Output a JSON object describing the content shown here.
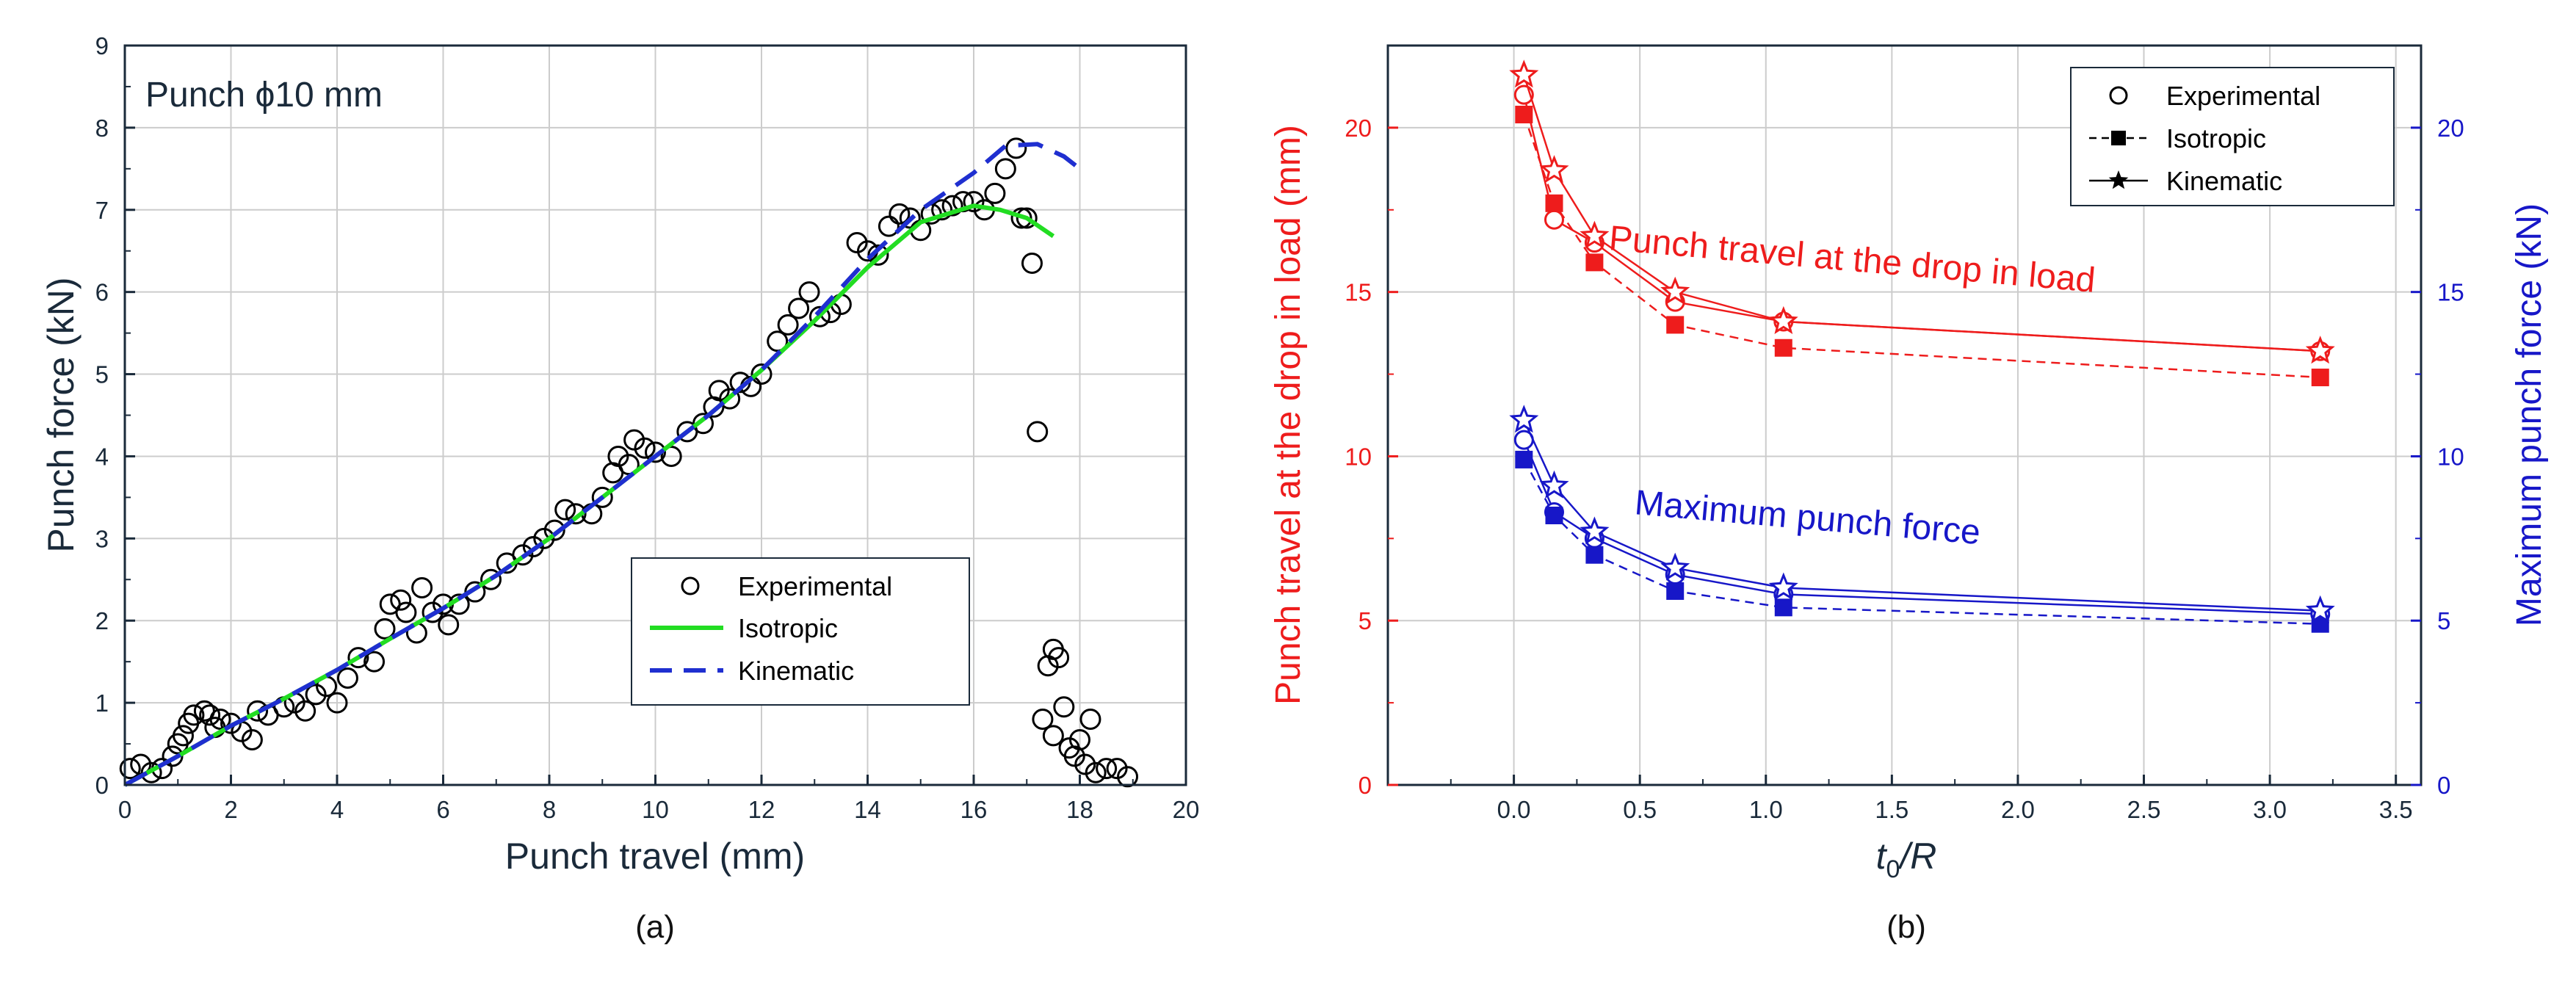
{
  "chart_data": [
    {
      "type": "scatter",
      "caption": "(a)",
      "annotation": "Punch ϕ10 mm",
      "xlabel": "Punch travel (mm)",
      "ylabel": "Punch force (kN)",
      "xlim": [
        0,
        20
      ],
      "ylim": [
        0,
        9
      ],
      "xticks": [
        "0",
        "2",
        "4",
        "6",
        "8",
        "10",
        "12",
        "14",
        "16",
        "18",
        "20"
      ],
      "yticks": [
        "0",
        "1",
        "2",
        "3",
        "4",
        "5",
        "6",
        "7",
        "8",
        "9"
      ],
      "grid": true,
      "legend_position": "bottom-right",
      "legend": [
        "Experimental",
        "Isotropic",
        "Kinematic"
      ],
      "colors": {
        "experimental": "#000000",
        "isotropic": "#22dd22",
        "kinematic": "#1f2fd0",
        "axes": "#1a2a3a"
      },
      "series": [
        {
          "name": "Experimental",
          "marker": "open-circle",
          "points": [
            [
              0.1,
              0.2
            ],
            [
              0.3,
              0.25
            ],
            [
              0.5,
              0.15
            ],
            [
              0.7,
              0.2
            ],
            [
              0.9,
              0.35
            ],
            [
              1.0,
              0.5
            ],
            [
              1.1,
              0.6
            ],
            [
              1.2,
              0.75
            ],
            [
              1.3,
              0.85
            ],
            [
              1.5,
              0.9
            ],
            [
              1.6,
              0.85
            ],
            [
              1.7,
              0.7
            ],
            [
              1.8,
              0.8
            ],
            [
              2.0,
              0.75
            ],
            [
              2.2,
              0.65
            ],
            [
              2.4,
              0.55
            ],
            [
              2.5,
              0.9
            ],
            [
              2.7,
              0.85
            ],
            [
              3.0,
              0.95
            ],
            [
              3.2,
              1.0
            ],
            [
              3.4,
              0.9
            ],
            [
              3.6,
              1.1
            ],
            [
              3.8,
              1.2
            ],
            [
              4.0,
              1.0
            ],
            [
              4.2,
              1.3
            ],
            [
              4.4,
              1.55
            ],
            [
              4.7,
              1.5
            ],
            [
              4.9,
              1.9
            ],
            [
              5.0,
              2.2
            ],
            [
              5.2,
              2.25
            ],
            [
              5.3,
              2.1
            ],
            [
              5.5,
              1.85
            ],
            [
              5.6,
              2.4
            ],
            [
              5.8,
              2.1
            ],
            [
              6.0,
              2.2
            ],
            [
              6.1,
              1.95
            ],
            [
              6.3,
              2.2
            ],
            [
              6.6,
              2.35
            ],
            [
              6.9,
              2.5
            ],
            [
              7.2,
              2.7
            ],
            [
              7.5,
              2.8
            ],
            [
              7.7,
              2.9
            ],
            [
              7.9,
              3.0
            ],
            [
              8.1,
              3.1
            ],
            [
              8.3,
              3.35
            ],
            [
              8.5,
              3.3
            ],
            [
              8.8,
              3.3
            ],
            [
              9.0,
              3.5
            ],
            [
              9.2,
              3.8
            ],
            [
              9.3,
              4.0
            ],
            [
              9.5,
              3.9
            ],
            [
              9.6,
              4.2
            ],
            [
              9.8,
              4.1
            ],
            [
              10.0,
              4.05
            ],
            [
              10.3,
              4.0
            ],
            [
              10.6,
              4.3
            ],
            [
              10.9,
              4.4
            ],
            [
              11.1,
              4.6
            ],
            [
              11.2,
              4.8
            ],
            [
              11.4,
              4.7
            ],
            [
              11.6,
              4.9
            ],
            [
              11.8,
              4.85
            ],
            [
              12.0,
              5.0
            ],
            [
              12.3,
              5.4
            ],
            [
              12.5,
              5.6
            ],
            [
              12.7,
              5.8
            ],
            [
              12.9,
              6.0
            ],
            [
              13.1,
              5.7
            ],
            [
              13.3,
              5.75
            ],
            [
              13.5,
              5.85
            ],
            [
              13.8,
              6.6
            ],
            [
              14.0,
              6.5
            ],
            [
              14.2,
              6.45
            ],
            [
              14.4,
              6.8
            ],
            [
              14.6,
              6.95
            ],
            [
              14.8,
              6.9
            ],
            [
              15.0,
              6.75
            ],
            [
              15.2,
              6.95
            ],
            [
              15.4,
              7.0
            ],
            [
              15.6,
              7.05
            ],
            [
              15.8,
              7.1
            ],
            [
              16.0,
              7.1
            ],
            [
              16.2,
              7.0
            ],
            [
              16.4,
              7.2
            ],
            [
              16.6,
              7.5
            ],
            [
              16.8,
              7.75
            ],
            [
              16.9,
              6.9
            ],
            [
              17.0,
              6.9
            ],
            [
              17.1,
              6.35
            ],
            [
              17.2,
              4.3
            ],
            [
              17.3,
              0.8
            ],
            [
              17.4,
              1.45
            ],
            [
              17.5,
              1.65
            ],
            [
              17.6,
              1.55
            ],
            [
              17.5,
              0.6
            ],
            [
              17.7,
              0.95
            ],
            [
              17.8,
              0.45
            ],
            [
              17.9,
              0.35
            ],
            [
              18.0,
              0.55
            ],
            [
              18.1,
              0.25
            ],
            [
              18.2,
              0.8
            ],
            [
              18.3,
              0.15
            ],
            [
              18.5,
              0.2
            ],
            [
              18.7,
              0.2
            ],
            [
              18.9,
              0.1
            ]
          ]
        },
        {
          "name": "Isotropic",
          "style": "solid-line",
          "points": [
            [
              0,
              0
            ],
            [
              1,
              0.35
            ],
            [
              2,
              0.72
            ],
            [
              3,
              1.05
            ],
            [
              4,
              1.4
            ],
            [
              5,
              1.78
            ],
            [
              6,
              2.15
            ],
            [
              7,
              2.55
            ],
            [
              8,
              3.0
            ],
            [
              9,
              3.5
            ],
            [
              10,
              4.0
            ],
            [
              11,
              4.5
            ],
            [
              12,
              5.05
            ],
            [
              13,
              5.65
            ],
            [
              14,
              6.3
            ],
            [
              15,
              6.85
            ],
            [
              16,
              7.05
            ],
            [
              16.5,
              7.0
            ],
            [
              17,
              6.9
            ],
            [
              17.5,
              6.68
            ]
          ]
        },
        {
          "name": "Kinematic",
          "style": "dashed-line",
          "points": [
            [
              0,
              0
            ],
            [
              1,
              0.35
            ],
            [
              2,
              0.72
            ],
            [
              3,
              1.05
            ],
            [
              4,
              1.4
            ],
            [
              5,
              1.78
            ],
            [
              6,
              2.15
            ],
            [
              7,
              2.55
            ],
            [
              8,
              3.0
            ],
            [
              9,
              3.5
            ],
            [
              10,
              4.0
            ],
            [
              11,
              4.5
            ],
            [
              12,
              5.05
            ],
            [
              13,
              5.7
            ],
            [
              14,
              6.4
            ],
            [
              15,
              7.0
            ],
            [
              16,
              7.45
            ],
            [
              16.6,
              7.78
            ],
            [
              17.2,
              7.8
            ],
            [
              17.7,
              7.65
            ],
            [
              18,
              7.5
            ]
          ]
        }
      ]
    },
    {
      "type": "line",
      "caption": "(b)",
      "xlabel": "t0/R",
      "xlabel_main": "t",
      "xlabel_sub": "0",
      "xlabel_rest": "/R",
      "ylabel_left": "Punch travel at the drop in load (mm)",
      "ylabel_right": "Maximum punch force (kN)",
      "xlim": [
        -0.5,
        3.6
      ],
      "ylim_left": [
        0,
        22.5
      ],
      "ylim_right": [
        0,
        22.5
      ],
      "xticks": [
        "0.0",
        "0.5",
        "1.0",
        "1.5",
        "2.0",
        "2.5",
        "3.0",
        "3.5"
      ],
      "yticks_left": [
        "0",
        "5",
        "10",
        "15",
        "20"
      ],
      "yticks_right": [
        "0",
        "5",
        "10",
        "15",
        "20"
      ],
      "grid": true,
      "legend_position": "top-right",
      "legend": [
        "Experimental",
        "Isotropic",
        "Kinematic"
      ],
      "annotations": [
        "Punch travel at the drop in load",
        "Maximum punch force"
      ],
      "colors": {
        "travel": "#ee1c1c",
        "force": "#1717c8",
        "legend": "#000000"
      },
      "x": [
        0.04,
        0.16,
        0.32,
        0.64,
        1.07,
        3.2
      ],
      "series": [
        {
          "name": "Experimental",
          "group": "travel",
          "marker": "open-circle",
          "style": "solid",
          "values": [
            21.0,
            17.2,
            16.5,
            14.7,
            14.1,
            13.2
          ]
        },
        {
          "name": "Isotropic",
          "group": "travel",
          "marker": "filled-square",
          "style": "dashed",
          "values": [
            20.4,
            17.7,
            15.9,
            14.0,
            13.3,
            12.4
          ]
        },
        {
          "name": "Kinematic",
          "group": "travel",
          "marker": "open-star",
          "style": "solid",
          "values": [
            21.6,
            18.7,
            16.7,
            15.0,
            14.1,
            13.2
          ]
        },
        {
          "name": "Experimental",
          "group": "force",
          "marker": "open-circle",
          "style": "solid",
          "values": [
            10.5,
            8.3,
            7.5,
            6.4,
            5.8,
            5.2
          ]
        },
        {
          "name": "Isotropic",
          "group": "force",
          "marker": "filled-square",
          "style": "dashed",
          "values": [
            9.9,
            8.2,
            7.0,
            5.9,
            5.4,
            4.9
          ]
        },
        {
          "name": "Kinematic",
          "group": "force",
          "marker": "open-star",
          "style": "solid",
          "values": [
            11.1,
            9.1,
            7.7,
            6.6,
            6.0,
            5.3
          ]
        }
      ]
    }
  ]
}
